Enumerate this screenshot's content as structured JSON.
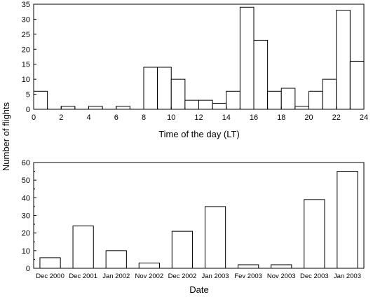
{
  "ylabel": "Number of flights",
  "chart_data": [
    {
      "type": "bar",
      "xlabel": "Time of the day (LT)",
      "ylabel": "Number of flights",
      "xlim": [
        0,
        24
      ],
      "ylim": [
        0,
        35
      ],
      "x_ticks": [
        0,
        2,
        4,
        6,
        8,
        10,
        12,
        14,
        16,
        18,
        20,
        22,
        24
      ],
      "y_ticks": [
        0,
        5,
        10,
        15,
        20,
        25,
        30,
        35
      ],
      "x": [
        0,
        1,
        2,
        3,
        4,
        5,
        6,
        7,
        8,
        9,
        10,
        11,
        12,
        13,
        14,
        15,
        16,
        17,
        18,
        19,
        20,
        21,
        22,
        23
      ],
      "values": [
        6,
        0,
        1,
        0,
        1,
        0,
        1,
        0,
        14,
        14,
        10,
        3,
        3,
        2,
        6,
        34,
        23,
        6,
        7,
        1,
        6,
        10,
        33,
        16
      ]
    },
    {
      "type": "bar",
      "xlabel": "Date",
      "ylabel": "Number of flights",
      "ylim": [
        0,
        60
      ],
      "y_ticks": [
        0,
        10,
        20,
        30,
        40,
        50,
        60
      ],
      "categories": [
        "Dec 2000",
        "Dec 2001",
        "Jan 2002",
        "Nov 2002",
        "Dec 2002",
        "Jan 2003",
        "Fev 2003",
        "Nov 2003",
        "Dec 2003",
        "Jan 2003"
      ],
      "values": [
        6,
        24,
        10,
        3,
        21,
        35,
        2,
        2,
        39,
        55
      ]
    }
  ]
}
